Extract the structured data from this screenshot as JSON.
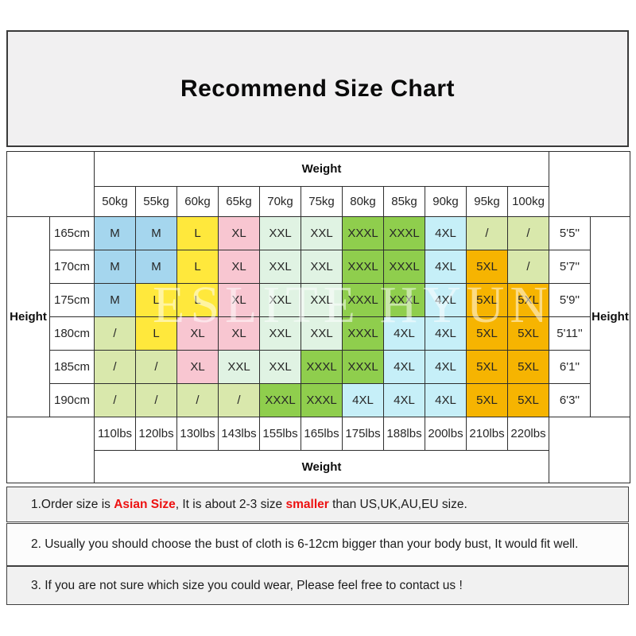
{
  "title": "Recommend Size Chart",
  "watermark": "ESLITE HYUN",
  "table": {
    "weight_label_top": "Weight",
    "weight_label_bottom": "Weight",
    "height_label_left": "Height",
    "height_label_right": "Height",
    "kg_headers": [
      "50kg",
      "55kg",
      "60kg",
      "65kg",
      "70kg",
      "75kg",
      "80kg",
      "85kg",
      "90kg",
      "95kg",
      "100kg"
    ],
    "lbs_footers": [
      "110lbs",
      "120lbs",
      "130lbs",
      "143lbs",
      "155lbs",
      "165lbs",
      "175lbs",
      "188lbs",
      "200lbs",
      "210lbs",
      "220lbs"
    ],
    "rows": [
      {
        "cm": "165cm",
        "feet": "5'5''",
        "sizes": [
          "M",
          "M",
          "L",
          "XL",
          "XXL",
          "XXL",
          "XXXL",
          "XXXL",
          "4XL",
          "/",
          "/"
        ]
      },
      {
        "cm": "170cm",
        "feet": "5'7''",
        "sizes": [
          "M",
          "M",
          "L",
          "XL",
          "XXL",
          "XXL",
          "XXXL",
          "XXXL",
          "4XL",
          "5XL",
          "/"
        ]
      },
      {
        "cm": "175cm",
        "feet": "5'9''",
        "sizes": [
          "M",
          "L",
          "L",
          "XL",
          "XXL",
          "XXL",
          "XXXL",
          "XXXL",
          "4XL",
          "5XL",
          "5XL"
        ]
      },
      {
        "cm": "180cm",
        "feet": "5'11''",
        "sizes": [
          "/",
          "L",
          "XL",
          "XL",
          "XXL",
          "XXL",
          "XXXL",
          "4XL",
          "4XL",
          "5XL",
          "5XL"
        ]
      },
      {
        "cm": "185cm",
        "feet": "6'1''",
        "sizes": [
          "/",
          "/",
          "XL",
          "XXL",
          "XXL",
          "XXXL",
          "XXXL",
          "4XL",
          "4XL",
          "5XL",
          "5XL"
        ]
      },
      {
        "cm": "190cm",
        "feet": "6'3''",
        "sizes": [
          "/",
          "/",
          "/",
          "/",
          "XXXL",
          "XXXL",
          "4XL",
          "4XL",
          "4XL",
          "5XL",
          "5XL"
        ]
      }
    ],
    "size_colors": {
      "M": "#A5D6EE",
      "L": "#FFE83C",
      "XL": "#F8C6D1",
      "XXL": "#E0F3E3",
      "XXXL": "#8FCE4D",
      "4XL": "#C6EFF8",
      "5XL": "#F6B401",
      "/": "#D9E8AC"
    }
  },
  "colors": {
    "note_red": "#ED1111"
  },
  "notes": [
    {
      "parts": [
        {
          "text": "1.Order size is ",
          "style": "normal"
        },
        {
          "text": "Asian Size",
          "style": "red-bold"
        },
        {
          "text": ", It is about 2-3 size ",
          "style": "normal"
        },
        {
          "text": "smaller",
          "style": "red-bold"
        },
        {
          "text": " than US,UK,AU,EU size.",
          "style": "normal"
        }
      ]
    },
    {
      "parts": [
        {
          "text": "2. Usually you should choose the bust of cloth is 6-12cm bigger than your body bust, It would fit well.",
          "style": "normal"
        }
      ]
    },
    {
      "parts": [
        {
          "text": "3. If you are not sure which size you could wear, Please feel free to contact us !",
          "style": "normal"
        }
      ]
    }
  ]
}
